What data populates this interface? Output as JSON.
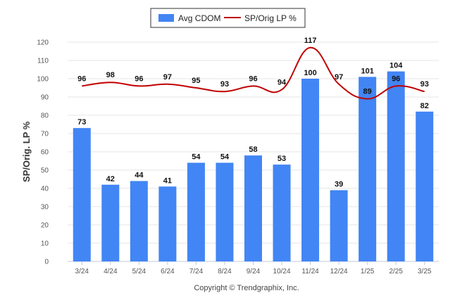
{
  "chart_data": {
    "type": "bar",
    "categories": [
      "3/24",
      "4/24",
      "5/24",
      "6/24",
      "7/24",
      "8/24",
      "9/24",
      "10/24",
      "11/24",
      "12/24",
      "1/25",
      "2/25",
      "3/25"
    ],
    "series": [
      {
        "name": "Avg CDOM",
        "type": "bar",
        "color": "#4285f4",
        "values": [
          73,
          42,
          44,
          41,
          54,
          54,
          58,
          53,
          100,
          39,
          101,
          104,
          82
        ]
      },
      {
        "name": "SP/Orig LP %",
        "type": "line",
        "color": "#c00000",
        "values": [
          96,
          98,
          96,
          97,
          95,
          93,
          96,
          94,
          117,
          97,
          89,
          96,
          93
        ]
      }
    ],
    "ylabel": "SP/Orig. LP %",
    "xlabel": "",
    "ylim": [
      0,
      120
    ],
    "yticks": [
      0,
      10,
      20,
      30,
      40,
      50,
      60,
      70,
      80,
      90,
      100,
      110,
      120
    ],
    "grid": true,
    "legend_position": "top-center"
  },
  "footer": {
    "copyright": "Copyright © Trendgraphix, Inc."
  }
}
